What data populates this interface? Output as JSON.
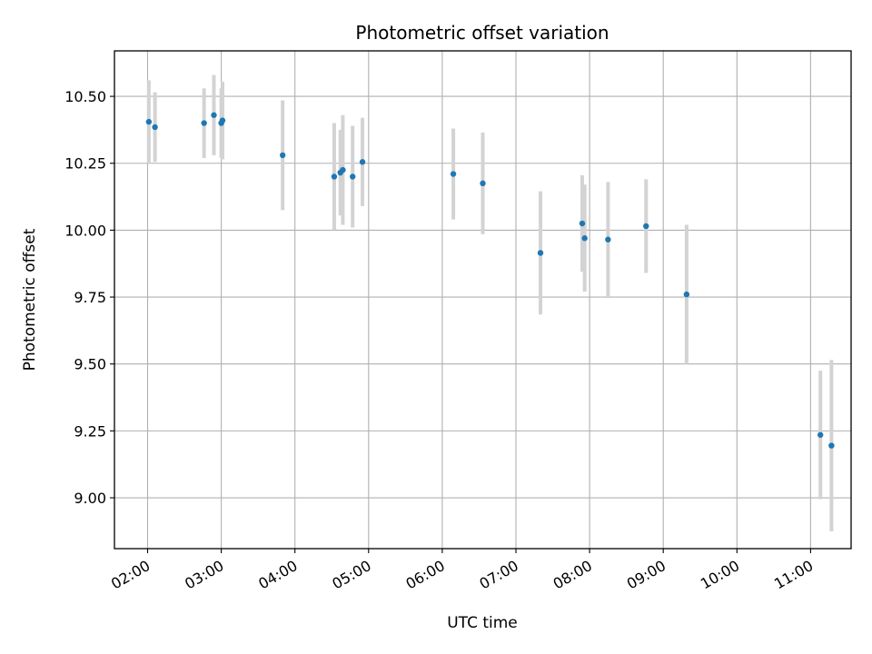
{
  "chart_data": {
    "type": "scatter",
    "title": "Photometric offset variation",
    "xlabel": "UTC time",
    "ylabel": "Photometric offset",
    "x_ticks": [
      "02:00",
      "03:00",
      "04:00",
      "05:00",
      "06:00",
      "07:00",
      "08:00",
      "09:00",
      "10:00",
      "11:00"
    ],
    "y_ticks": [
      "9.00",
      "9.25",
      "9.50",
      "9.75",
      "10.00",
      "10.25",
      "10.50"
    ],
    "xlim": [
      "01:33",
      "11:33"
    ],
    "ylim": [
      8.81,
      10.67
    ],
    "grid": true,
    "colors": {
      "point": "#1f77b4",
      "errorbar": "#d3d3d3",
      "grid": "#b0b0b0"
    },
    "points": [
      {
        "x": "02:01",
        "y": 10.405,
        "err": 0.155
      },
      {
        "x": "02:06",
        "y": 10.385,
        "err": 0.13
      },
      {
        "x": "02:46",
        "y": 10.4,
        "err": 0.13
      },
      {
        "x": "02:54",
        "y": 10.43,
        "err": 0.15
      },
      {
        "x": "03:00",
        "y": 10.4,
        "err": 0.13
      },
      {
        "x": "03:01",
        "y": 10.41,
        "err": 0.145
      },
      {
        "x": "03:50",
        "y": 10.28,
        "err": 0.205
      },
      {
        "x": "04:32",
        "y": 10.2,
        "err": 0.2
      },
      {
        "x": "04:37",
        "y": 10.215,
        "err": 0.16
      },
      {
        "x": "04:39",
        "y": 10.225,
        "err": 0.205
      },
      {
        "x": "04:47",
        "y": 10.2,
        "err": 0.19
      },
      {
        "x": "04:55",
        "y": 10.255,
        "err": 0.165
      },
      {
        "x": "06:09",
        "y": 10.21,
        "err": 0.17
      },
      {
        "x": "06:33",
        "y": 10.175,
        "err": 0.19
      },
      {
        "x": "07:20",
        "y": 9.915,
        "err": 0.23
      },
      {
        "x": "07:54",
        "y": 10.025,
        "err": 0.18
      },
      {
        "x": "07:56",
        "y": 9.97,
        "err": 0.2
      },
      {
        "x": "08:15",
        "y": 9.965,
        "err": 0.215
      },
      {
        "x": "08:46",
        "y": 10.015,
        "err": 0.175
      },
      {
        "x": "09:19",
        "y": 9.76,
        "err": 0.26
      },
      {
        "x": "11:08",
        "y": 9.235,
        "err": 0.24
      },
      {
        "x": "11:17",
        "y": 9.195,
        "err": 0.32
      }
    ]
  }
}
